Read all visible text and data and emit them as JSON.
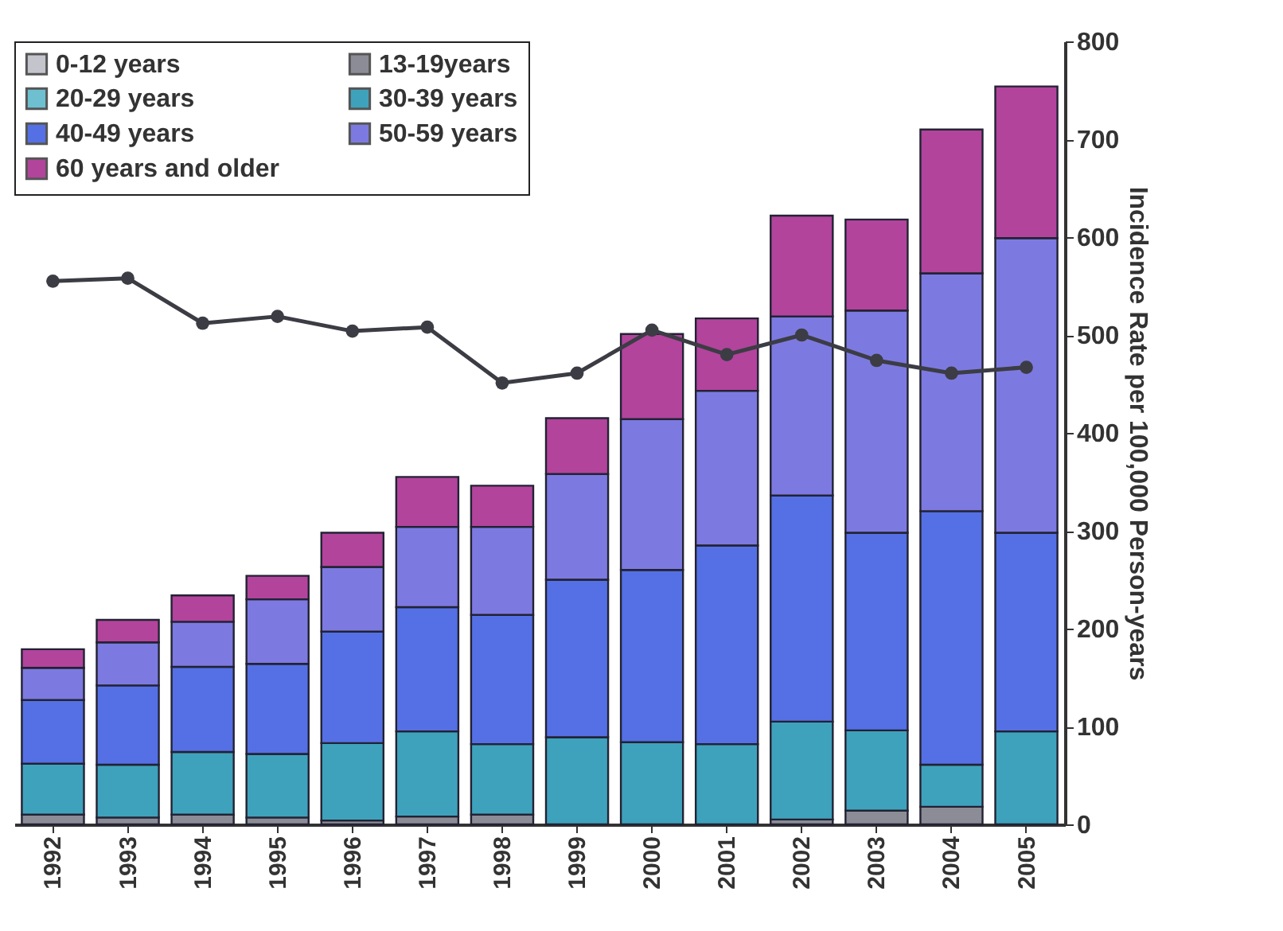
{
  "chart_data": {
    "type": "bar",
    "stacked": true,
    "ylabel": "Incidence Rate per 100,000 Person-years",
    "categories": [
      "1992",
      "1993",
      "1994",
      "1995",
      "1996",
      "1997",
      "1998",
      "1999",
      "2000",
      "2001",
      "2002",
      "2003",
      "2004",
      "2005"
    ],
    "series": [
      {
        "name": "0-12 years",
        "color": "#c4c4cc",
        "values": [
          null,
          null,
          null,
          null,
          null,
          null,
          null,
          null,
          null,
          null,
          null,
          null,
          null,
          null
        ]
      },
      {
        "name": "13-19years",
        "color": "#8c8c96",
        "values": [
          10,
          7,
          10,
          7,
          4,
          8,
          10,
          null,
          null,
          null,
          5,
          14,
          18,
          null
        ]
      },
      {
        "name": "20-29 years",
        "color": "#6ec0d0",
        "values": [
          null,
          null,
          null,
          null,
          null,
          null,
          null,
          null,
          null,
          null,
          null,
          null,
          null,
          null
        ]
      },
      {
        "name": "30-39 years",
        "color": "#3fa2bc",
        "values": [
          52,
          54,
          64,
          65,
          79,
          87,
          72,
          89,
          84,
          82,
          100,
          82,
          43,
          95
        ]
      },
      {
        "name": "40-49 years",
        "color": "#5470e4",
        "values": [
          65,
          81,
          87,
          92,
          114,
          127,
          132,
          161,
          176,
          203,
          231,
          202,
          259,
          203
        ]
      },
      {
        "name": "50-59 years",
        "color": "#7c7ae0",
        "values": [
          33,
          44,
          46,
          66,
          66,
          82,
          90,
          108,
          154,
          158,
          183,
          227,
          243,
          301
        ]
      },
      {
        "name": "60 years and older",
        "color": "#b2449c",
        "values": [
          19,
          23,
          27,
          24,
          35,
          51,
          42,
          57,
          87,
          74,
          103,
          93,
          147,
          155
        ]
      },
      {
        "type": "line",
        "color": "#3c3c44",
        "values": [
          555,
          558,
          512,
          519,
          504,
          508,
          451,
          461,
          505,
          480,
          500,
          474,
          461,
          467
        ]
      }
    ],
    "ylim": [
      0,
      800
    ],
    "yticks": [
      0,
      100,
      200,
      300,
      400,
      500,
      600,
      700,
      800
    ],
    "grid": false,
    "legend": "top left",
    "marker": "circle",
    "line_style": "solid"
  }
}
